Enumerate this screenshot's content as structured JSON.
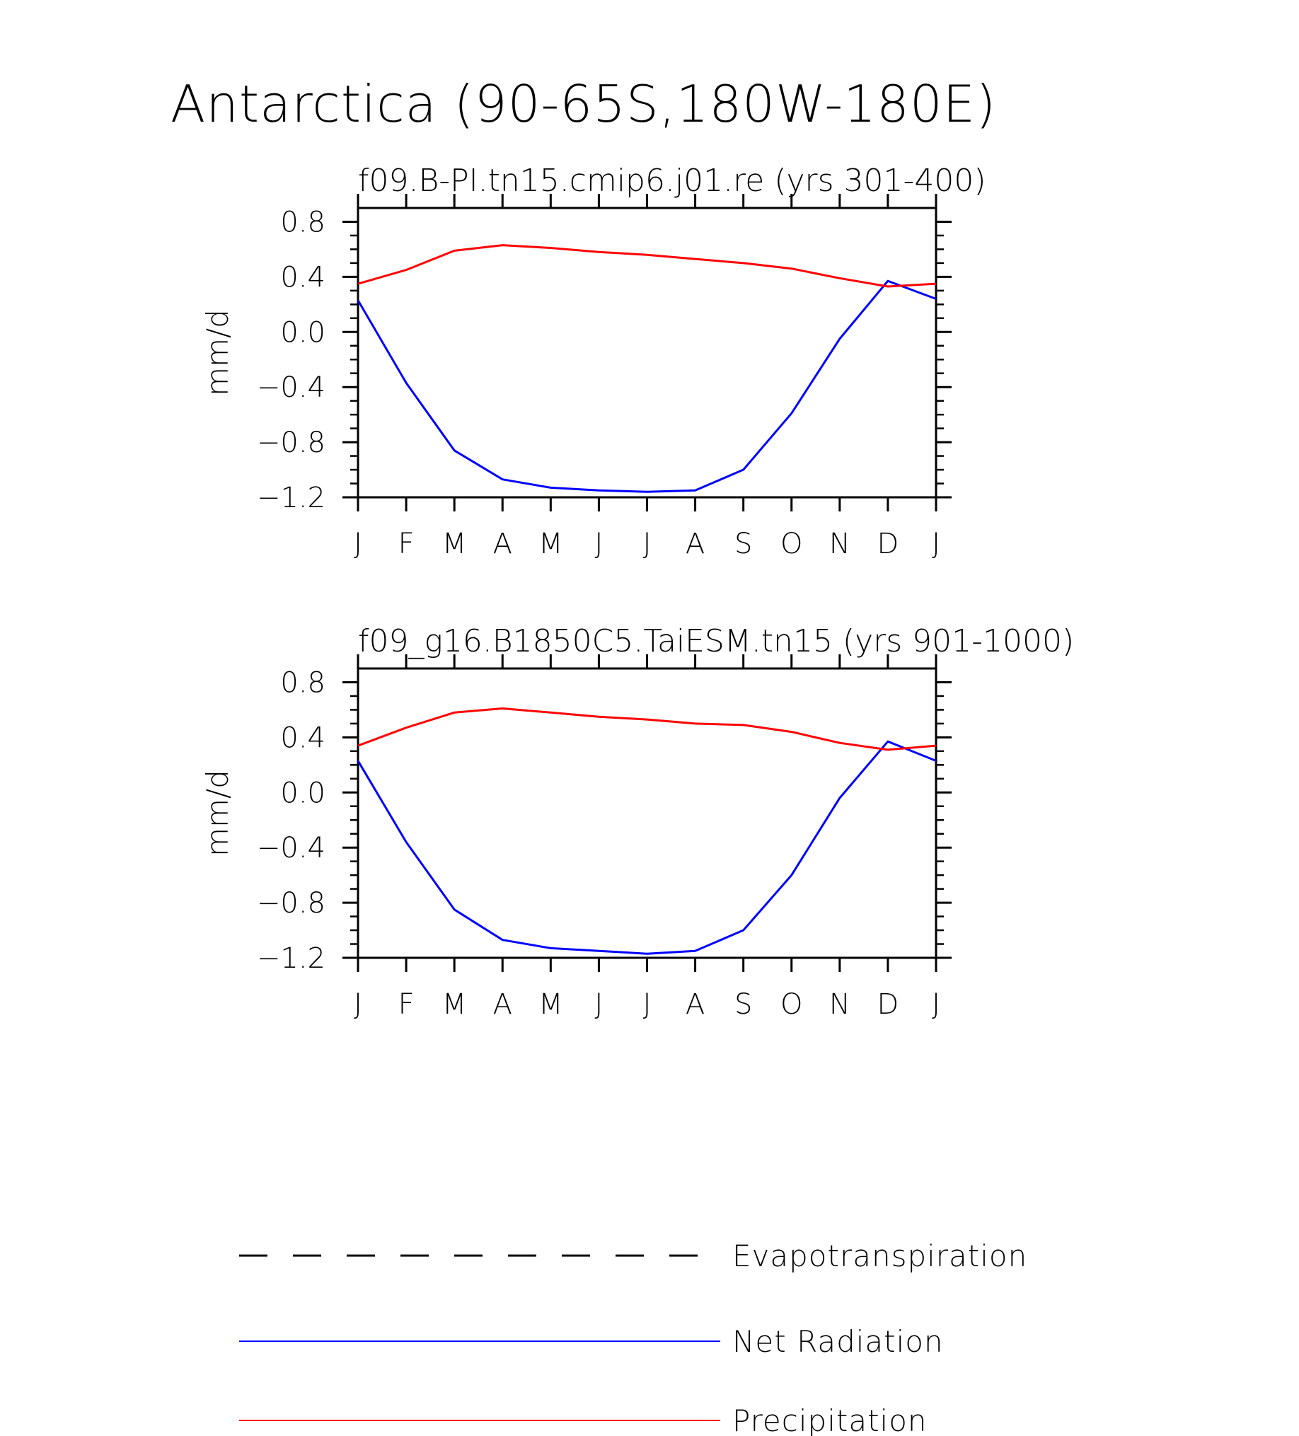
{
  "figure": {
    "title": "Antarctica (90-65S,180W-180E)"
  },
  "colors": {
    "net_radiation": "#0000ff",
    "precipitation": "#ff0000",
    "evapotranspiration": "#000000"
  },
  "legend": [
    {
      "label": "Evapotranspiration",
      "style": "dashed",
      "color": "#000000"
    },
    {
      "label": "Net Radiation",
      "style": "solid",
      "color": "#0000ff"
    },
    {
      "label": "Precipitation",
      "style": "solid",
      "color": "#ff0000"
    }
  ],
  "chart_data": [
    {
      "type": "line",
      "title": "f09.B-PI.tn15.cmip6.j01.re (yrs 301-400)",
      "xlabel": "",
      "ylabel": "mm/d",
      "categories": [
        "J",
        "F",
        "M",
        "A",
        "M",
        "J",
        "J",
        "A",
        "S",
        "O",
        "N",
        "D",
        "J"
      ],
      "ylim": [
        -1.2,
        0.9
      ],
      "yticks": [
        0.8,
        0.4,
        0.0,
        -0.4,
        -0.8,
        -1.2
      ],
      "ytick_labels": [
        "0.8",
        "0.4",
        "0.0",
        "-0.4",
        "-0.8",
        "-1.2"
      ],
      "grid": false,
      "series": [
        {
          "name": "Net Radiation",
          "color": "#0000ff",
          "values": [
            0.23,
            -0.37,
            -0.86,
            -1.07,
            -1.13,
            -1.15,
            -1.16,
            -1.15,
            -1.0,
            -0.59,
            -0.05,
            0.37,
            0.24
          ]
        },
        {
          "name": "Precipitation",
          "color": "#ff0000",
          "values": [
            0.35,
            0.45,
            0.59,
            0.63,
            0.61,
            0.58,
            0.56,
            0.53,
            0.5,
            0.46,
            0.39,
            0.33,
            0.35
          ]
        }
      ]
    },
    {
      "type": "line",
      "title": "f09_g16.B1850C5.TaiESM.tn15 (yrs 901-1000)",
      "xlabel": "",
      "ylabel": "mm/d",
      "categories": [
        "J",
        "F",
        "M",
        "A",
        "M",
        "J",
        "J",
        "A",
        "S",
        "O",
        "N",
        "D",
        "J"
      ],
      "ylim": [
        -1.2,
        0.9
      ],
      "yticks": [
        0.8,
        0.4,
        0.0,
        -0.4,
        -0.8,
        -1.2
      ],
      "ytick_labels": [
        "0.8",
        "0.4",
        "0.0",
        "-0.4",
        "-0.8",
        "-1.2"
      ],
      "grid": false,
      "series": [
        {
          "name": "Net Radiation",
          "color": "#0000ff",
          "values": [
            0.23,
            -0.36,
            -0.85,
            -1.07,
            -1.13,
            -1.15,
            -1.17,
            -1.15,
            -1.0,
            -0.6,
            -0.04,
            0.37,
            0.23
          ]
        },
        {
          "name": "Precipitation",
          "color": "#ff0000",
          "values": [
            0.34,
            0.47,
            0.58,
            0.61,
            0.58,
            0.55,
            0.53,
            0.5,
            0.49,
            0.44,
            0.36,
            0.31,
            0.34
          ]
        }
      ]
    }
  ]
}
